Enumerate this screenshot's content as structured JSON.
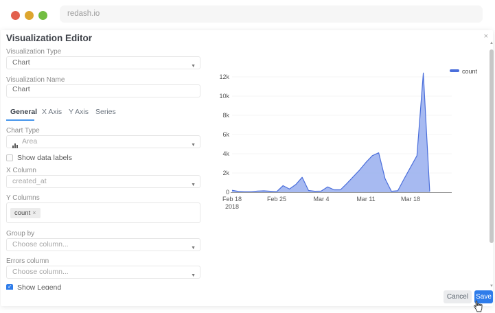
{
  "browser": {
    "url": "redash.io"
  },
  "modal": {
    "title": "Visualization Editor",
    "close_icon": "×",
    "tabs": [
      {
        "label": "General",
        "active": true
      },
      {
        "label": "X Axis",
        "active": false
      },
      {
        "label": "Y Axis",
        "active": false
      },
      {
        "label": "Series",
        "active": false
      }
    ],
    "fields": {
      "visualization_type": {
        "label": "Visualization Type",
        "value": "Chart"
      },
      "visualization_name": {
        "label": "Visualization Name",
        "value": "Chart"
      },
      "chart_type": {
        "label": "Chart Type",
        "value": "Area",
        "icon": "area-chart-icon"
      },
      "show_data_labels": {
        "label": "Show data labels",
        "checked": false
      },
      "x_column": {
        "label": "X Column",
        "value": "created_at"
      },
      "y_columns": {
        "label": "Y Columns",
        "tags": [
          {
            "label": "count",
            "remove_icon": "×"
          }
        ]
      },
      "group_by": {
        "label": "Group by",
        "placeholder": "Choose column..."
      },
      "errors_column": {
        "label": "Errors column",
        "placeholder": "Choose column..."
      },
      "show_legend": {
        "label": "Show Legend",
        "checked": true
      }
    },
    "footer": {
      "cancel_label": "Cancel",
      "save_label": "Save"
    }
  },
  "chart_data": {
    "type": "area",
    "title": "",
    "xlabel": "",
    "ylabel": "",
    "legend": {
      "position": "top-right",
      "entries": [
        "count"
      ]
    },
    "grid": false,
    "ylim": [
      0,
      13100
    ],
    "colors": {
      "line": "#4a6edb",
      "fill": "#9db2f0"
    },
    "yticks": [
      {
        "label": "0",
        "value": 0
      },
      {
        "label": "2k",
        "value": 2000
      },
      {
        "label": "4k",
        "value": 4000
      },
      {
        "label": "6k",
        "value": 6000
      },
      {
        "label": "8k",
        "value": 8000
      },
      {
        "label": "10k",
        "value": 10000
      },
      {
        "label": "12k",
        "value": 12000
      }
    ],
    "xticks": [
      {
        "label": "Feb 18",
        "sub": "2018",
        "index": 0
      },
      {
        "label": "Feb 25",
        "sub": "",
        "index": 7
      },
      {
        "label": "Mar 4",
        "sub": "",
        "index": 14
      },
      {
        "label": "Mar 11",
        "sub": "",
        "index": 21
      },
      {
        "label": "Mar 18",
        "sub": "",
        "index": 28
      }
    ],
    "series": [
      {
        "name": "count",
        "x": [
          "Feb 18",
          "Feb 19",
          "Feb 20",
          "Feb 21",
          "Feb 22",
          "Feb 23",
          "Feb 24",
          "Feb 25",
          "Feb 26",
          "Feb 27",
          "Feb 28",
          "Mar 1",
          "Mar 2",
          "Mar 3",
          "Mar 4",
          "Mar 5",
          "Mar 6",
          "Mar 7",
          "Mar 8",
          "Mar 9",
          "Mar 10",
          "Mar 11",
          "Mar 12",
          "Mar 13",
          "Mar 14",
          "Mar 15",
          "Mar 16",
          "Mar 17",
          "Mar 18",
          "Mar 19",
          "Mar 20",
          "Mar 21"
        ],
        "values": [
          200,
          80,
          50,
          50,
          120,
          140,
          100,
          60,
          680,
          330,
          800,
          1550,
          180,
          100,
          120,
          550,
          250,
          250,
          900,
          1600,
          2300,
          3100,
          3800,
          4100,
          1400,
          100,
          150,
          1400,
          2600,
          3800,
          12400,
          80
        ]
      }
    ]
  },
  "ui_colors": {
    "accent_blue": "#2e7cea",
    "tab_underline": "#4796ec",
    "traffic_red": "#e2614e",
    "traffic_yellow": "#ddа62f",
    "traffic_green": "#72bd41"
  }
}
